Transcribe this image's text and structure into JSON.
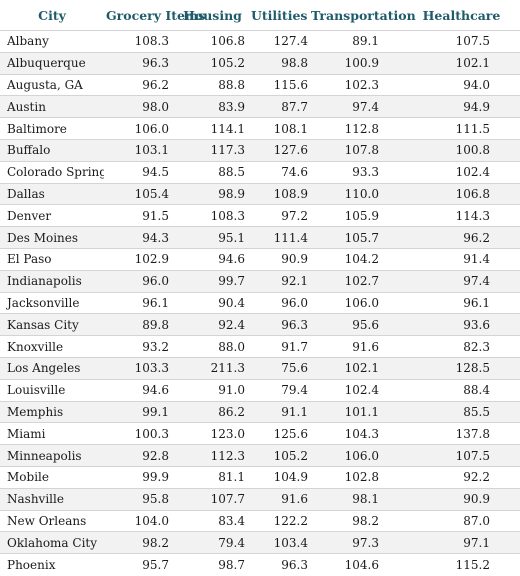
{
  "table": {
    "headers": [
      "City",
      "Grocery Items",
      "Housing",
      "Utilities",
      "Transportation",
      "Healthcare"
    ],
    "rows": [
      [
        "Albany",
        "108.3",
        "106.8",
        "127.4",
        "89.1",
        "107.5"
      ],
      [
        "Albuquerque",
        "96.3",
        "105.2",
        "98.8",
        "100.9",
        "102.1"
      ],
      [
        "Augusta, GA",
        "96.2",
        "88.8",
        "115.6",
        "102.3",
        "94.0"
      ],
      [
        "Austin",
        "98.0",
        "83.9",
        "87.7",
        "97.4",
        "94.9"
      ],
      [
        "Baltimore",
        "106.0",
        "114.1",
        "108.1",
        "112.8",
        "111.5"
      ],
      [
        "Buffalo",
        "103.1",
        "117.3",
        "127.6",
        "107.8",
        "100.8"
      ],
      [
        "Colorado Springs",
        "94.5",
        "88.5",
        "74.6",
        "93.3",
        "102.4"
      ],
      [
        "Dallas",
        "105.4",
        "98.9",
        "108.9",
        "110.0",
        "106.8"
      ],
      [
        "Denver",
        "91.5",
        "108.3",
        "97.2",
        "105.9",
        "114.3"
      ],
      [
        "Des Moines",
        "94.3",
        "95.1",
        "111.4",
        "105.7",
        "96.2"
      ],
      [
        "El Paso",
        "102.9",
        "94.6",
        "90.9",
        "104.2",
        "91.4"
      ],
      [
        "Indianapolis",
        "96.0",
        "99.7",
        "92.1",
        "102.7",
        "97.4"
      ],
      [
        "Jacksonville",
        "96.1",
        "90.4",
        "96.0",
        "106.0",
        "96.1"
      ],
      [
        "Kansas City",
        "89.8",
        "92.4",
        "96.3",
        "95.6",
        "93.6"
      ],
      [
        "Knoxville",
        "93.2",
        "88.0",
        "91.7",
        "91.6",
        "82.3"
      ],
      [
        "Los Angeles",
        "103.3",
        "211.3",
        "75.6",
        "102.1",
        "128.5"
      ],
      [
        "Louisville",
        "94.6",
        "91.0",
        "79.4",
        "102.4",
        "88.4"
      ],
      [
        "Memphis",
        "99.1",
        "86.2",
        "91.1",
        "101.1",
        "85.5"
      ],
      [
        "Miami",
        "100.3",
        "123.0",
        "125.6",
        "104.3",
        "137.8"
      ],
      [
        "Minneapolis",
        "92.8",
        "112.3",
        "105.2",
        "106.0",
        "107.5"
      ],
      [
        "Mobile",
        "99.9",
        "81.1",
        "104.9",
        "102.8",
        "92.2"
      ],
      [
        "Nashville",
        "95.8",
        "107.7",
        "91.6",
        "98.1",
        "90.9"
      ],
      [
        "New Orleans",
        "104.0",
        "83.4",
        "122.2",
        "98.2",
        "87.0"
      ],
      [
        "Oklahoma City",
        "98.2",
        "79.4",
        "103.4",
        "97.3",
        "97.1"
      ],
      [
        "Phoenix",
        "95.7",
        "98.7",
        "96.3",
        "104.6",
        "115.2"
      ]
    ]
  }
}
